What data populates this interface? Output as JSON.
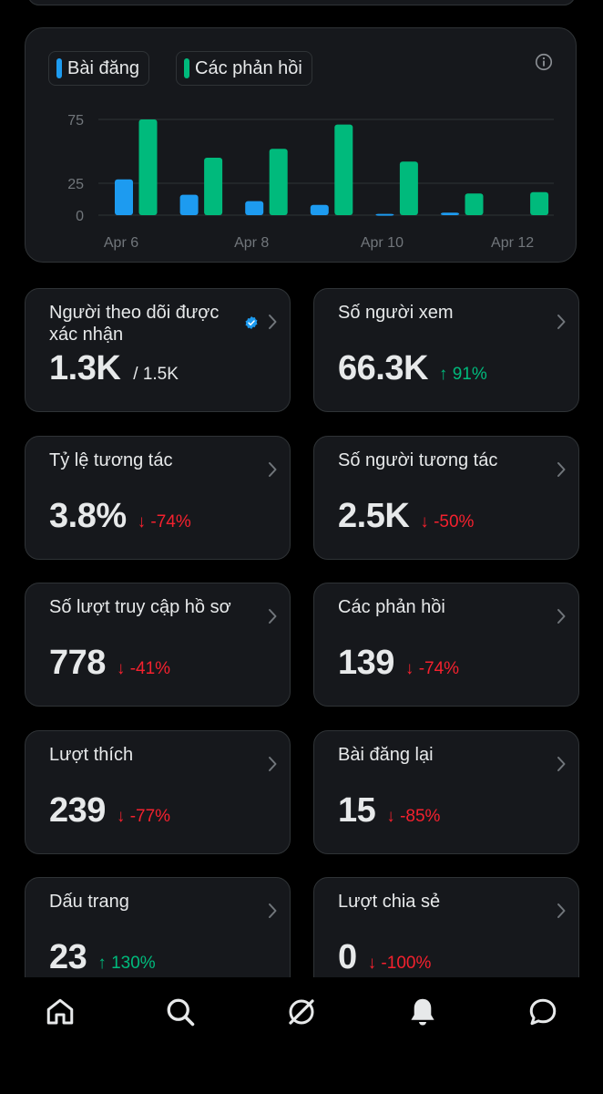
{
  "chart": {
    "legend": [
      {
        "label": "Bài đăng",
        "color": "#1d9bf0"
      },
      {
        "label": "Các phản hồi",
        "color": "#00ba7c"
      }
    ],
    "info_icon": "info-icon"
  },
  "chart_data": {
    "type": "bar",
    "y_ticks": [
      "75",
      "25",
      "0"
    ],
    "ylim": [
      0,
      80
    ],
    "x_tick_labels": [
      "Apr 6",
      "Apr 8",
      "Apr 10",
      "Apr 12"
    ],
    "series": [
      {
        "name": "Bài đăng",
        "color": "#1d9bf0",
        "values": [
          28,
          16,
          11,
          8,
          1,
          2,
          0
        ]
      },
      {
        "name": "Các phản hồi",
        "color": "#00ba7c",
        "values": [
          75,
          45,
          52,
          71,
          42,
          17,
          18
        ]
      }
    ]
  },
  "stats": [
    {
      "title": "Người theo dõi được xác nhận",
      "value": "1.3K",
      "sub": "/ 1.5K",
      "change": "",
      "direction": "none",
      "verified": true
    },
    {
      "title": "Số người xem",
      "value": "66.3K",
      "sub": "",
      "change": "91%",
      "direction": "up",
      "verified": false
    },
    {
      "title": "Tỷ lệ tương tác",
      "value": "3.8%",
      "sub": "",
      "change": "-74%",
      "direction": "down",
      "verified": false
    },
    {
      "title": "Số người tương tác",
      "value": "2.5K",
      "sub": "",
      "change": "-50%",
      "direction": "down",
      "verified": false
    },
    {
      "title": "Số lượt truy cập hồ sơ",
      "value": "778",
      "sub": "",
      "change": "-41%",
      "direction": "down",
      "verified": false
    },
    {
      "title": "Các phản hồi",
      "value": "139",
      "sub": "",
      "change": "-74%",
      "direction": "down",
      "verified": false
    },
    {
      "title": "Lượt thích",
      "value": "239",
      "sub": "",
      "change": "-77%",
      "direction": "down",
      "verified": false
    },
    {
      "title": "Bài đăng lại",
      "value": "15",
      "sub": "",
      "change": "-85%",
      "direction": "down",
      "verified": false
    },
    {
      "title": "Dấu trang",
      "value": "23",
      "sub": "",
      "change": "130%",
      "direction": "up",
      "verified": false
    },
    {
      "title": "Lượt chia sẻ",
      "value": "0",
      "sub": "",
      "change": "-100%",
      "direction": "down",
      "verified": false
    }
  ],
  "nav": [
    "home-icon",
    "search-icon",
    "grok-icon",
    "notifications-icon",
    "messages-icon"
  ]
}
